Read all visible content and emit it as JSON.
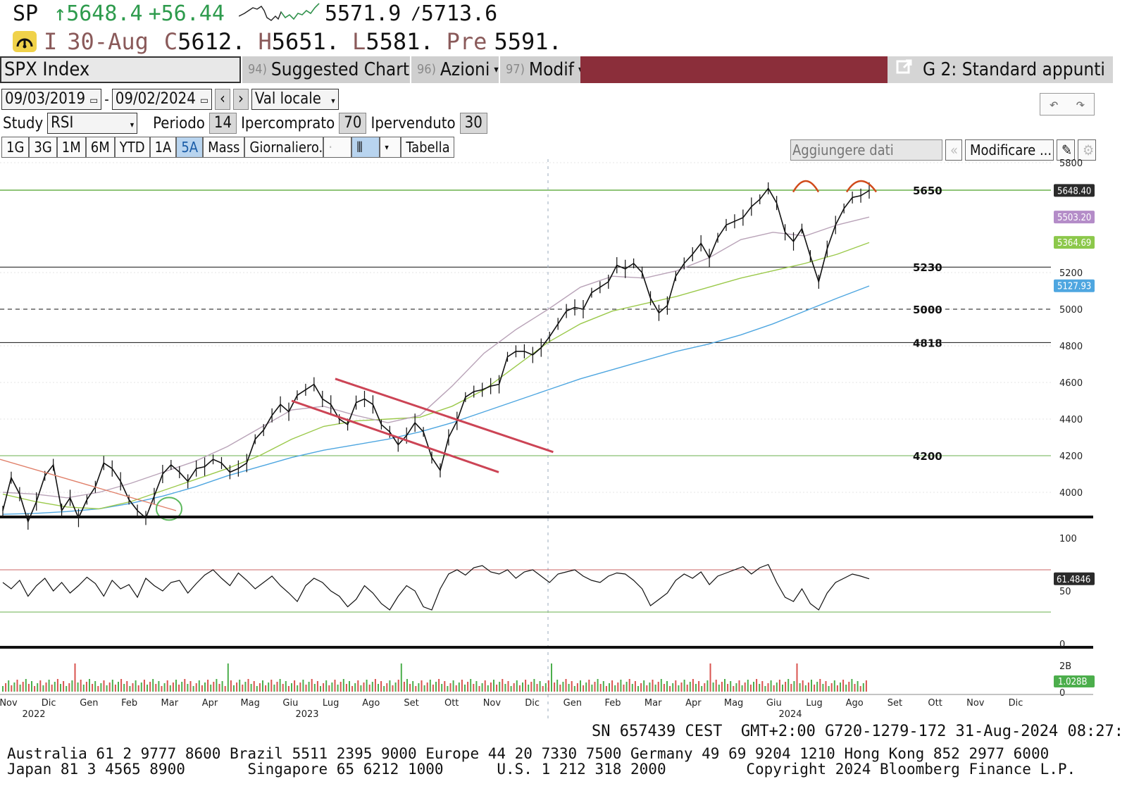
{
  "header": {
    "ticker": "SP",
    "arrow": "↑",
    "last": "5648.4",
    "change": "+56.44",
    "low52": "5571.9",
    "sep": "/",
    "high52": "5713.6",
    "gauge_icon": "gauge-icon",
    "type": "I",
    "date": "30-Aug",
    "close_label": "C",
    "close": "5612.",
    "high_label": "H",
    "high": "5651.",
    "low_label": "L",
    "low": "5581.",
    "prev_label": "Pre",
    "prev": "5591."
  },
  "toolbar": {
    "security": "SPX Index",
    "suggested_num": "94)",
    "suggested_label": "Suggested Charts",
    "actions_num": "96)",
    "actions_label": "Azioni",
    "modify_num": "97)",
    "modify_label": "Modif",
    "layout_label": "G 2: Standard appunti"
  },
  "controls": {
    "start_date": "09/03/2019",
    "end_date": "09/02/2024",
    "dash": "-",
    "currency": "Val locale",
    "study_label": "Study",
    "study_value": "RSI",
    "period_label": "Periodo",
    "period_value": "14",
    "overbought_label": "Ipercomprato",
    "overbought_value": "70",
    "oversold_label": "Ipervenduto",
    "oversold_value": "30",
    "periods": [
      "1G",
      "3G",
      "1M",
      "6M",
      "YTD",
      "1A",
      "5A",
      "Mass"
    ],
    "selected_period": "5A",
    "frequency": "Giornaliero...",
    "table_label": "Tabella",
    "add_data_placeholder": "Aggiungere dati",
    "modify_btn": "Modificare ..."
  },
  "chart_data": {
    "type": "line",
    "title": "",
    "price_axis": {
      "ticks": [
        4000,
        4200,
        4400,
        4600,
        4800,
        5000,
        5200,
        5800
      ],
      "ylim": [
        3880,
        5800
      ]
    },
    "x_axis": {
      "months": [
        "Nov",
        "Dic",
        "Gen",
        "Feb",
        "Mar",
        "Apr",
        "Mag",
        "Giu",
        "Lug",
        "Ago",
        "Set",
        "Ott",
        "Nov",
        "Dic",
        "Gen",
        "Feb",
        "Mar",
        "Apr",
        "Mag",
        "Giu",
        "Lug",
        "Ago",
        "Set",
        "Ott",
        "Nov",
        "Dic"
      ],
      "years": [
        "2022",
        "2023",
        "2024"
      ]
    },
    "level_lines": [
      {
        "label": "5650",
        "value": 5650
      },
      {
        "label": "5230",
        "value": 5230
      },
      {
        "label": "5000",
        "value": 5000
      },
      {
        "label": "4818",
        "value": 4818
      },
      {
        "label": "4200",
        "value": 4200
      }
    ],
    "price_tags": [
      {
        "label": "5648.40",
        "value": 5648.4,
        "color": "#2b2b2b"
      },
      {
        "label": "5503.20",
        "value": 5503.2,
        "color": "#b48cc8"
      },
      {
        "label": "5364.69",
        "value": 5364.69,
        "color": "#8cc84b"
      },
      {
        "label": "5127.93",
        "value": 5127.93,
        "color": "#4ea6e0"
      }
    ],
    "price_series": [
      3900,
      4080,
      3990,
      3840,
      3950,
      4090,
      4150,
      3900,
      3970,
      3860,
      3960,
      4030,
      4160,
      4130,
      4060,
      3960,
      3900,
      3860,
      3980,
      4100,
      4150,
      4110,
      4060,
      4130,
      4140,
      4180,
      4160,
      4110,
      4130,
      4160,
      4290,
      4340,
      4420,
      4480,
      4440,
      4530,
      4560,
      4590,
      4510,
      4480,
      4400,
      4370,
      4490,
      4510,
      4480,
      4370,
      4330,
      4260,
      4310,
      4380,
      4330,
      4190,
      4120,
      4300,
      4390,
      4520,
      4550,
      4560,
      4580,
      4590,
      4740,
      4770,
      4770,
      4750,
      4790,
      4850,
      4920,
      4990,
      5010,
      5000,
      5090,
      5120,
      5150,
      5240,
      5220,
      5250,
      5200,
      5060,
      4980,
      5020,
      5180,
      5250,
      5300,
      5360,
      5280,
      5390,
      5460,
      5480,
      5500,
      5560,
      5600,
      5660,
      5580,
      5420,
      5370,
      5440,
      5290,
      5150,
      5330,
      5460,
      5550,
      5610,
      5620,
      5648
    ],
    "ma_series": [
      {
        "name": "",
        "color": "#4ea6e0",
        "values": [
          3880,
          3885,
          3895,
          3910,
          3940,
          3980,
          4030,
          4090,
          4140,
          4190,
          4230,
          4260,
          4290,
          4330,
          4380,
          4440,
          4500,
          4560,
          4620,
          4670,
          4720,
          4770,
          4810,
          4860,
          4920,
          4990,
          5060,
          5127
        ]
      },
      {
        "name": "",
        "color": "#9bc94b",
        "values": [
          3990,
          3950,
          3920,
          3910,
          3950,
          4010,
          4070,
          4130,
          4200,
          4290,
          4360,
          4390,
          4400,
          4410,
          4470,
          4560,
          4690,
          4820,
          4920,
          4990,
          5030,
          5070,
          5120,
          5170,
          5210,
          5250,
          5300,
          5364
        ]
      },
      {
        "name": "",
        "color": "#b9a3b8",
        "values": [
          4000,
          3990,
          3970,
          4000,
          4050,
          4110,
          4170,
          4250,
          4350,
          4450,
          4470,
          4420,
          4380,
          4420,
          4580,
          4760,
          4890,
          5000,
          5120,
          5180,
          5170,
          5210,
          5280,
          5380,
          5420,
          5400,
          5460,
          5503
        ]
      }
    ],
    "channel_lines": [
      {
        "from": [
          4620,
          0.305
        ],
        "to": [
          4220,
          0.505
        ]
      },
      {
        "from": [
          4500,
          0.265
        ],
        "to": [
          4110,
          0.455
        ]
      }
    ],
    "rsi_axis": {
      "ticks": [
        100,
        50,
        0
      ],
      "current": "61.4846",
      "overbought": 70,
      "oversold": 30
    },
    "rsi_series": [
      58,
      52,
      60,
      45,
      55,
      62,
      50,
      58,
      48,
      55,
      63,
      57,
      45,
      60,
      52,
      56,
      44,
      62,
      55,
      50,
      58,
      60,
      48,
      57,
      65,
      70,
      62,
      55,
      67,
      60,
      52,
      58,
      64,
      55,
      48,
      40,
      55,
      62,
      58,
      50,
      45,
      35,
      42,
      55,
      48,
      38,
      32,
      45,
      55,
      50,
      35,
      32,
      52,
      66,
      70,
      65,
      72,
      74,
      68,
      66,
      70,
      62,
      68,
      70,
      64,
      58,
      66,
      68,
      70,
      64,
      60,
      58,
      64,
      67,
      66,
      60,
      52,
      36,
      42,
      48,
      60,
      66,
      62,
      68,
      56,
      64,
      67,
      70,
      73,
      66,
      72,
      75,
      58,
      44,
      40,
      52,
      38,
      32,
      48,
      58,
      62,
      66,
      64,
      61.5
    ],
    "volume_axis": {
      "ticks": [
        "2B",
        "0"
      ],
      "current": "1.028B"
    }
  },
  "footer": {
    "session": "SN 657439 CEST  GMT+2:00 G720-1279-172 31-Aug-2024 08:27:",
    "line1": "Australia 61 2 9777 8600 Brazil 5511 2395 9000 Europe 44 20 7330 7500 Germany 49 69 9204 1210 Hong Kong 852 2977 6000",
    "line2": "Japan 81 3 4565 8900       Singapore 65 6212 1000      U.S. 1 212 318 2000         Copyright 2024 Bloomberg Finance L.P."
  }
}
